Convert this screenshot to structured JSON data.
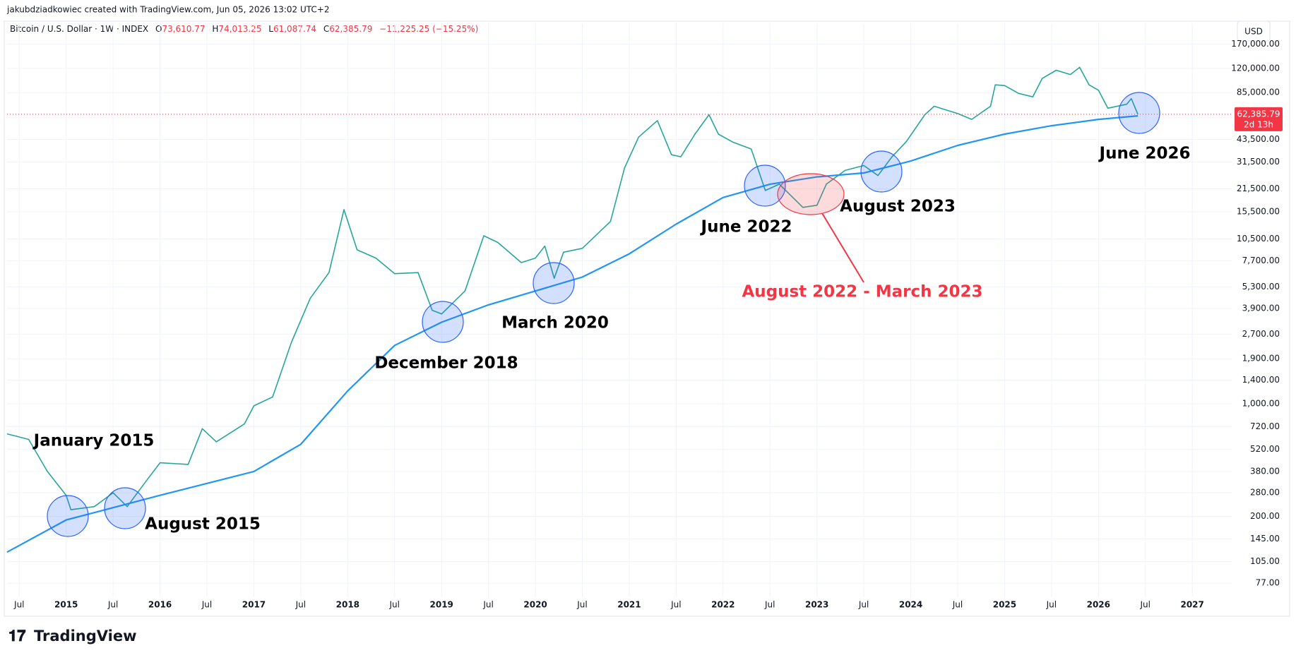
{
  "header": {
    "credit": "jakubdziadkowiec created with TradingView.com, Jun 05, 2026 13:02 UTC+2",
    "symbol": "Bitcoin / U.S. Dollar · 1W · INDEX",
    "open_key": "O",
    "open": "73,610.77",
    "high_key": "H",
    "high": "74,013.25",
    "low_key": "L",
    "low": "61,087.74",
    "close_key": "C",
    "close": "62,385.79",
    "change": "−11,225.25 (−15.25%)",
    "currency": "USD",
    "last_price": "62,385.79",
    "countdown": "2d 13h",
    "logo": "TradingView"
  },
  "chart_data": {
    "type": "line",
    "log_scale": true,
    "grid": true,
    "series": [
      {
        "color": "#26a69a",
        "x": [
          2014.37,
          2014.6,
          2014.8,
          2015.0,
          2015.05,
          2015.3,
          2015.5,
          2015.65,
          2015.85,
          2016.0,
          2016.3,
          2016.45,
          2016.6,
          2016.9,
          2017.0,
          2017.2,
          2017.4,
          2017.6,
          2017.8,
          2017.96,
          2018.1,
          2018.3,
          2018.5,
          2018.75,
          2018.9,
          2019.0,
          2019.25,
          2019.45,
          2019.6,
          2019.85,
          2020.0,
          2020.1,
          2020.2,
          2020.3,
          2020.5,
          2020.8,
          2020.95,
          2021.1,
          2021.3,
          2021.45,
          2021.55,
          2021.7,
          2021.85,
          2021.95,
          2022.1,
          2022.3,
          2022.45,
          2022.6,
          2022.85,
          2023.0,
          2023.1,
          2023.3,
          2023.5,
          2023.65,
          2023.8,
          2023.95,
          2024.15,
          2024.25,
          2024.5,
          2024.65,
          2024.85,
          2024.9,
          2025.0,
          2025.15,
          2025.3,
          2025.4,
          2025.55,
          2025.7,
          2025.8,
          2025.9,
          2026.0,
          2026.1,
          2026.3,
          2026.35,
          2026.42
        ],
        "values": [
          650,
          600,
          380,
          270,
          220,
          230,
          280,
          230,
          330,
          430,
          420,
          700,
          580,
          750,
          970,
          1100,
          2400,
          4500,
          6500,
          16000,
          9000,
          8000,
          6400,
          6500,
          3800,
          3600,
          5000,
          11000,
          10000,
          7500,
          8000,
          9500,
          6000,
          8700,
          9200,
          13500,
          29000,
          45000,
          57000,
          35000,
          34000,
          47000,
          62000,
          47000,
          42000,
          38000,
          21000,
          23000,
          16500,
          17000,
          23000,
          28000,
          30000,
          26000,
          34000,
          42000,
          62000,
          70000,
          63000,
          58000,
          70000,
          95000,
          94000,
          84000,
          80000,
          104000,
          117000,
          110000,
          122000,
          95000,
          88000,
          68000,
          72000,
          78000,
          62385.79
        ]
      },
      {
        "color": "#2196f3",
        "x": [
          2014.37,
          2015,
          2016,
          2017,
          2017.5,
          2018,
          2018.5,
          2019,
          2019.5,
          2020,
          2020.5,
          2021,
          2021.5,
          2022,
          2022.5,
          2023,
          2023.5,
          2024,
          2024.5,
          2025,
          2025.5,
          2026,
          2026.42
        ],
        "values": [
          120,
          190,
          270,
          380,
          560,
          1200,
          2300,
          3200,
          4100,
          5000,
          6100,
          8500,
          13000,
          19000,
          23000,
          25500,
          27000,
          32000,
          40000,
          47000,
          53000,
          58000,
          61000
        ]
      }
    ],
    "xlim": [
      2014.37,
      2027.42
    ],
    "xticks": [
      {
        "value": 2014.5,
        "label": "Jul"
      },
      2015,
      {
        "value": 2015.5,
        "label": "Jul"
      },
      2016,
      {
        "value": 2016.5,
        "label": "Jul"
      },
      2017,
      {
        "value": 2017.5,
        "label": "Jul"
      },
      2018,
      {
        "value": 2018.5,
        "label": "Jul"
      },
      2019,
      {
        "value": 2019.5,
        "label": "Jul"
      },
      2020,
      {
        "value": 2020.5,
        "label": "Jul"
      },
      2021,
      {
        "value": 2021.5,
        "label": "Jul"
      },
      2022,
      {
        "value": 2022.5,
        "label": "Jul"
      },
      2023,
      {
        "value": 2023.5,
        "label": "Jul"
      },
      2024,
      {
        "value": 2024.5,
        "label": "Jul"
      },
      2025,
      {
        "value": 2025.5,
        "label": "Jul"
      },
      2026,
      {
        "value": 2026.5,
        "label": "Jul"
      },
      2027
    ],
    "ylim": [
      65,
      187000
    ],
    "yticks": [
      {
        "value": 170000,
        "label": "170,000.00"
      },
      {
        "value": 120000,
        "label": "120,000.00"
      },
      {
        "value": 85000,
        "label": "85,000.00"
      },
      {
        "value": 43500,
        "label": "43,500.00"
      },
      {
        "value": 31500,
        "label": "31,500.00"
      },
      {
        "value": 21500,
        "label": "21,500.00"
      },
      {
        "value": 15500,
        "label": "15,500.00"
      },
      {
        "value": 10500,
        "label": "10,500.00"
      },
      {
        "value": 7700,
        "label": "7,700.00"
      },
      {
        "value": 5300,
        "label": "5,300.00"
      },
      {
        "value": 3900,
        "label": "3,900.00"
      },
      {
        "value": 2700,
        "label": "2,700.00"
      },
      {
        "value": 1900,
        "label": "1,900.00"
      },
      {
        "value": 1400,
        "label": "1,400.00"
      },
      {
        "value": 1000,
        "label": "1,000.00"
      },
      {
        "value": 720,
        "label": "720.00"
      },
      {
        "value": 520,
        "label": "520.00"
      },
      {
        "value": 380,
        "label": "380.00"
      },
      {
        "value": 280,
        "label": "280.00"
      },
      {
        "value": 200,
        "label": "200.00"
      },
      {
        "value": 145,
        "label": "145.00"
      },
      {
        "value": 105,
        "label": "105.00"
      },
      {
        "value": 77,
        "label": "77.00"
      }
    ],
    "annotations": [
      "January 2015",
      "August 2015",
      "December 2018",
      "March 2020",
      "June 2022",
      "August 2022 - March 2023",
      "August 2023",
      "June 2026"
    ]
  }
}
